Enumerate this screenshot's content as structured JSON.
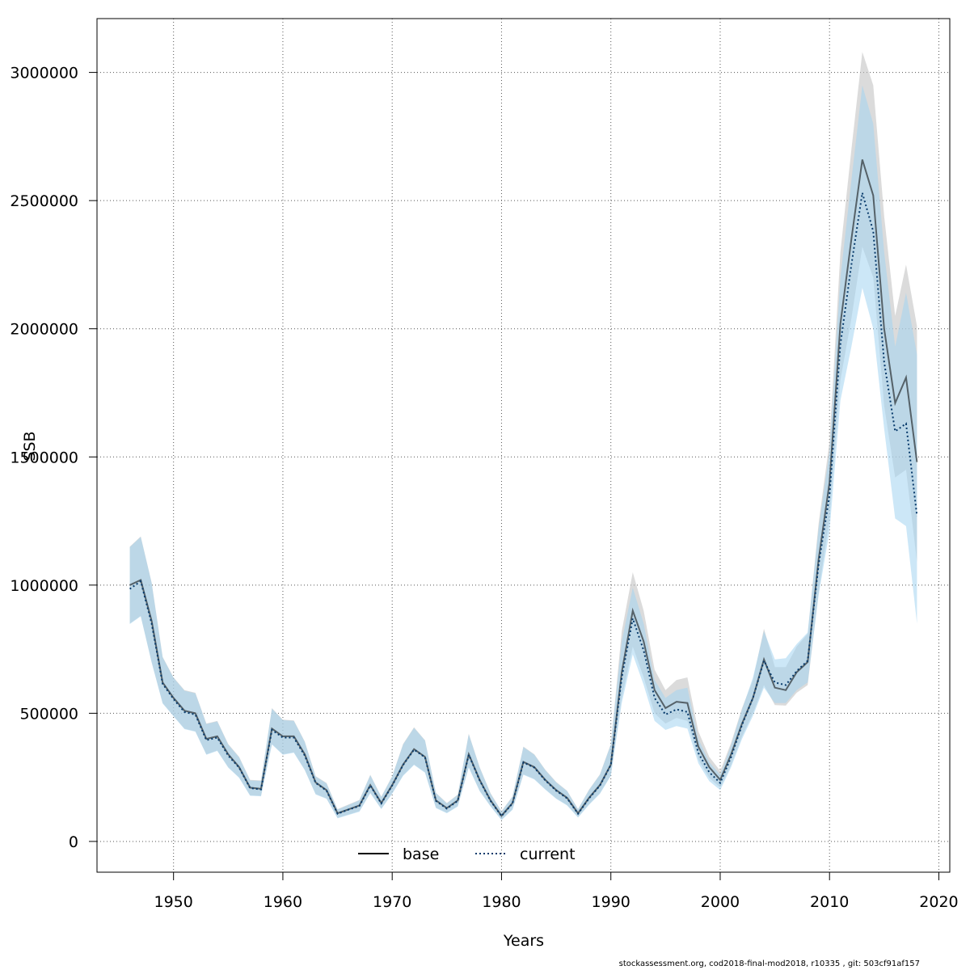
{
  "chart_data": {
    "type": "line",
    "title": "",
    "xlabel": "Years",
    "ylabel": "SSB",
    "xlim": [
      1943,
      2021
    ],
    "ylim": [
      -120000,
      3210000
    ],
    "x_ticks": [
      1950,
      1960,
      1970,
      1980,
      1990,
      2000,
      2010,
      2020
    ],
    "y_ticks": [
      0,
      500000,
      1000000,
      1500000,
      2000000,
      2500000,
      3000000
    ],
    "x_tick_labels": [
      "1950",
      "1960",
      "1970",
      "1980",
      "1990",
      "2000",
      "2010",
      "2020"
    ],
    "y_tick_labels": [
      "0",
      "500000",
      "1000000",
      "1500000",
      "2000000",
      "2500000",
      "3000000"
    ],
    "grid": true,
    "legend_position": "bottom-center",
    "x": [
      1946,
      1947,
      1948,
      1949,
      1950,
      1951,
      1952,
      1953,
      1954,
      1955,
      1956,
      1957,
      1958,
      1959,
      1960,
      1961,
      1962,
      1963,
      1964,
      1965,
      1966,
      1967,
      1968,
      1969,
      1970,
      1971,
      1972,
      1973,
      1974,
      1975,
      1976,
      1977,
      1978,
      1979,
      1980,
      1981,
      1982,
      1983,
      1984,
      1985,
      1986,
      1987,
      1988,
      1989,
      1990,
      1991,
      1992,
      1993,
      1994,
      1995,
      1996,
      1997,
      1998,
      1999,
      2000,
      2001,
      2002,
      2003,
      2004,
      2005,
      2006,
      2007,
      2008,
      2009,
      2010,
      2011,
      2012,
      2013,
      2014,
      2015,
      2016,
      2017,
      2018
    ],
    "series": [
      {
        "name": "base",
        "style": "solid",
        "color": "#000000",
        "band_color": "#bebebe",
        "values": [
          1000000,
          1020000,
          860000,
          620000,
          560000,
          510000,
          500000,
          400000,
          410000,
          340000,
          290000,
          210000,
          205000,
          440000,
          410000,
          410000,
          340000,
          230000,
          200000,
          110000,
          125000,
          140000,
          220000,
          150000,
          220000,
          300000,
          360000,
          330000,
          160000,
          130000,
          160000,
          340000,
          240000,
          160000,
          100000,
          150000,
          310000,
          290000,
          240000,
          200000,
          170000,
          110000,
          170000,
          220000,
          300000,
          660000,
          900000,
          780000,
          590000,
          520000,
          545000,
          540000,
          370000,
          290000,
          240000,
          340000,
          460000,
          560000,
          710000,
          600000,
          590000,
          660000,
          700000,
          1100000,
          1400000,
          2020000,
          2350000,
          2660000,
          2520000,
          2000000,
          1710000,
          1810000,
          1480000
        ],
        "lower": [
          850000,
          880000,
          700000,
          540000,
          490000,
          440000,
          430000,
          340000,
          355000,
          290000,
          250000,
          180000,
          178000,
          380000,
          340000,
          348000,
          280000,
          185000,
          168000,
          92000,
          105000,
          118000,
          190000,
          128000,
          188000,
          258000,
          300000,
          270000,
          132000,
          112000,
          138000,
          290000,
          198000,
          138000,
          85000,
          125000,
          262000,
          244000,
          204000,
          168000,
          142000,
          95000,
          145000,
          188000,
          258000,
          560000,
          760000,
          640000,
          500000,
          460000,
          482000,
          470000,
          320000,
          248000,
          210000,
          298000,
          410000,
          500000,
          610000,
          532000,
          530000,
          580000,
          610000,
          970000,
          1260000,
          1800000,
          2040000,
          2320000,
          2200000,
          1700000,
          1420000,
          1450000,
          1090000
        ],
        "upper": [
          1150000,
          1190000,
          1010000,
          720000,
          640000,
          590000,
          580000,
          460000,
          470000,
          380000,
          330000,
          240000,
          238000,
          520000,
          475000,
          472000,
          390000,
          255000,
          228000,
          126000,
          144000,
          162000,
          260000,
          175000,
          255000,
          380000,
          445000,
          395000,
          190000,
          150000,
          183000,
          420000,
          290000,
          188000,
          118000,
          176000,
          370000,
          340000,
          280000,
          232000,
          198000,
          127000,
          202000,
          262000,
          380000,
          820000,
          1050000,
          900000,
          670000,
          590000,
          630000,
          640000,
          430000,
          330000,
          275000,
          385000,
          520000,
          630000,
          830000,
          680000,
          680000,
          760000,
          810000,
          1240000,
          1560000,
          2300000,
          2700000,
          3080000,
          2950000,
          2440000,
          2050000,
          2250000,
          2010000
        ]
      },
      {
        "name": "current",
        "style": "dotted",
        "color": "#073a6b",
        "band_color": "#a3d3f0",
        "values": [
          985000,
          1015000,
          850000,
          615000,
          555000,
          505000,
          495000,
          395000,
          405000,
          335000,
          288000,
          208000,
          203000,
          435000,
          405000,
          405000,
          335000,
          228000,
          198000,
          108000,
          124000,
          138000,
          218000,
          148000,
          218000,
          298000,
          358000,
          328000,
          158000,
          128000,
          158000,
          338000,
          238000,
          158000,
          99000,
          148000,
          308000,
          288000,
          238000,
          198000,
          168000,
          108000,
          168000,
          218000,
          298000,
          640000,
          870000,
          745000,
          560000,
          495000,
          515000,
          505000,
          345000,
          270000,
          228000,
          330000,
          455000,
          560000,
          705000,
          620000,
          610000,
          665000,
          705000,
          1080000,
          1350000,
          1940000,
          2250000,
          2530000,
          2380000,
          1870000,
          1600000,
          1630000,
          1270000
        ],
        "lower": [
          848000,
          878000,
          698000,
          538000,
          488000,
          438000,
          428000,
          338000,
          353000,
          288000,
          248000,
          178000,
          176000,
          378000,
          338000,
          346000,
          278000,
          183000,
          166000,
          90000,
          103000,
          116000,
          188000,
          126000,
          186000,
          256000,
          298000,
          268000,
          130000,
          110000,
          136000,
          288000,
          196000,
          136000,
          83000,
          123000,
          260000,
          242000,
          202000,
          166000,
          140000,
          93000,
          143000,
          186000,
          256000,
          540000,
          730000,
          610000,
          470000,
          435000,
          450000,
          440000,
          305000,
          235000,
          200000,
          290000,
          400000,
          490000,
          600000,
          540000,
          540000,
          590000,
          620000,
          960000,
          1210000,
          1720000,
          1930000,
          2160000,
          2000000,
          1610000,
          1260000,
          1230000,
          850000
        ],
        "upper": [
          1148000,
          1188000,
          1008000,
          718000,
          638000,
          588000,
          578000,
          458000,
          468000,
          378000,
          328000,
          238000,
          236000,
          518000,
          473000,
          470000,
          388000,
          253000,
          226000,
          124000,
          142000,
          160000,
          258000,
          173000,
          253000,
          378000,
          443000,
          393000,
          188000,
          148000,
          181000,
          418000,
          288000,
          186000,
          116000,
          174000,
          368000,
          338000,
          278000,
          230000,
          196000,
          125000,
          200000,
          260000,
          378000,
          780000,
          990000,
          850000,
          630000,
          560000,
          590000,
          600000,
          400000,
          310000,
          260000,
          375000,
          515000,
          640000,
          820000,
          710000,
          715000,
          770000,
          815000,
          1220000,
          1520000,
          2200000,
          2580000,
          2950000,
          2800000,
          2300000,
          1930000,
          2140000,
          1900000
        ]
      }
    ]
  },
  "footer_text": "stockassessment.org, cod2018-final-mod2018, r10335 , git: 503cf91af157"
}
